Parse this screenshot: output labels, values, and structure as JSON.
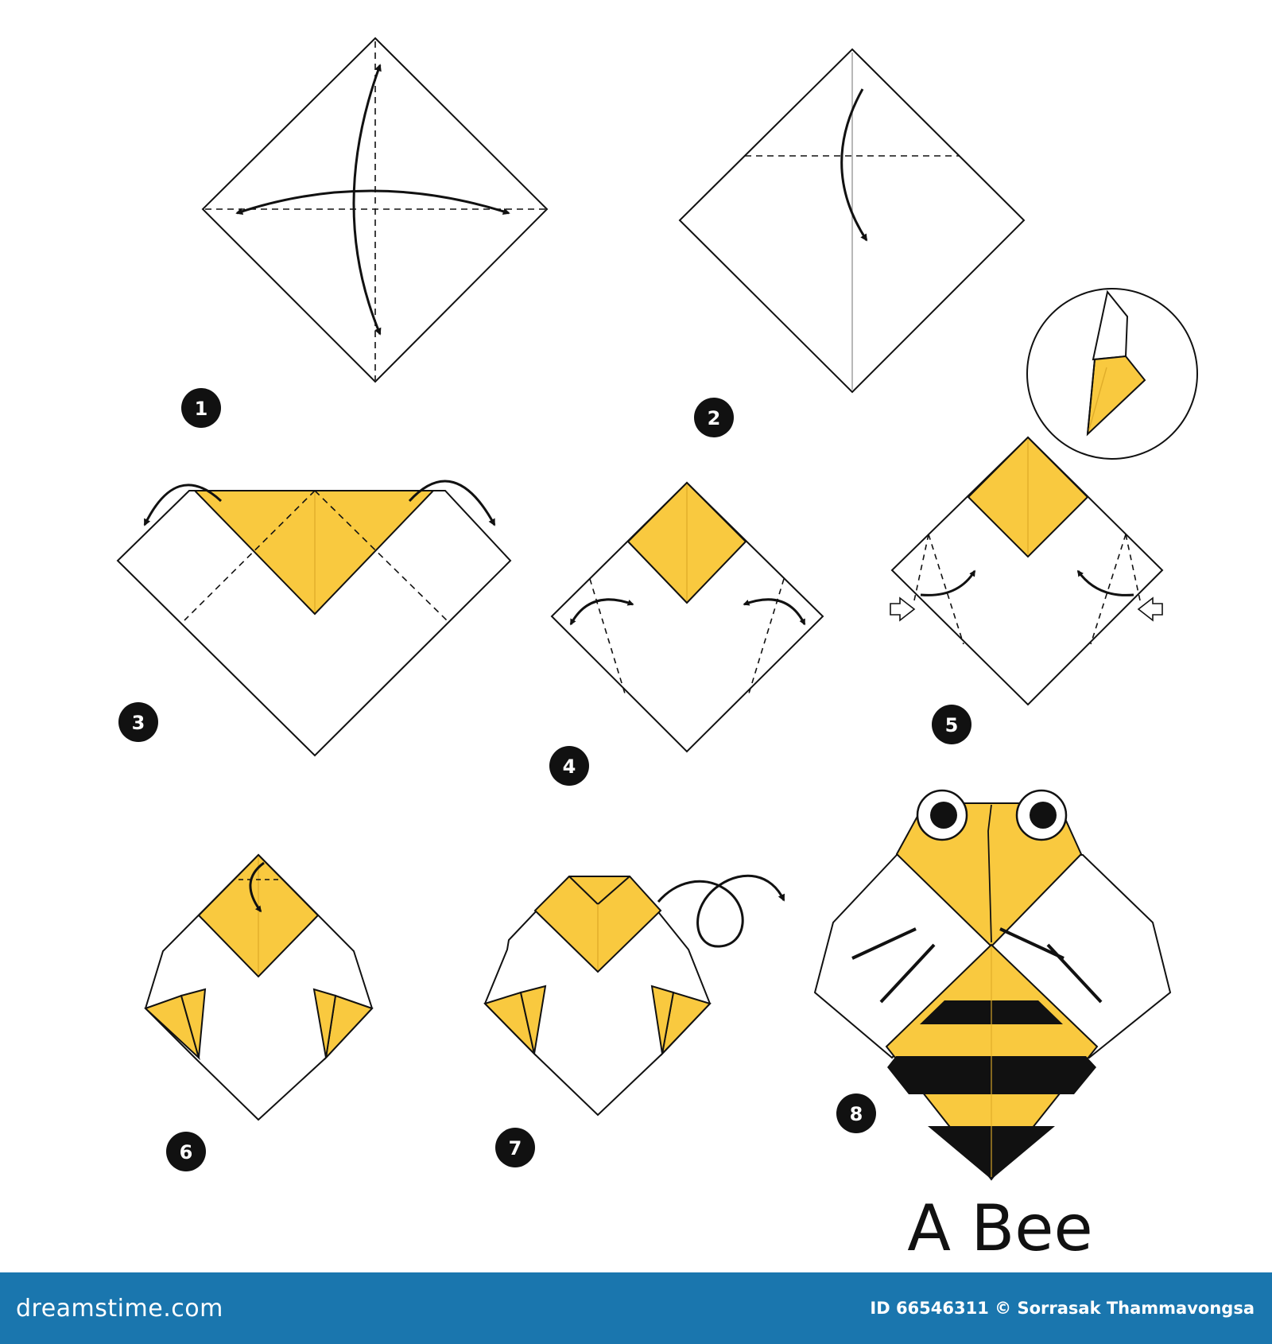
{
  "title": "A Bee",
  "steps": [
    {
      "number": "1"
    },
    {
      "number": "2"
    },
    {
      "number": "3"
    },
    {
      "number": "4"
    },
    {
      "number": "5"
    },
    {
      "number": "6"
    },
    {
      "number": "7"
    },
    {
      "number": "8"
    }
  ],
  "footer": {
    "brand": "dreamstime.com",
    "credit": "ID 66546311 © Sorrasak Thammavongsa"
  },
  "colors": {
    "paper_front": "#f9c93f",
    "paper_back": "#ffffff",
    "outline": "#111111",
    "stripe": "#111111",
    "footer_bg": "#1a76ae"
  },
  "icons": [
    "fold-arrow-icon",
    "turn-over-arrow-icon",
    "push-arrow-icon",
    "step-number-badge"
  ]
}
